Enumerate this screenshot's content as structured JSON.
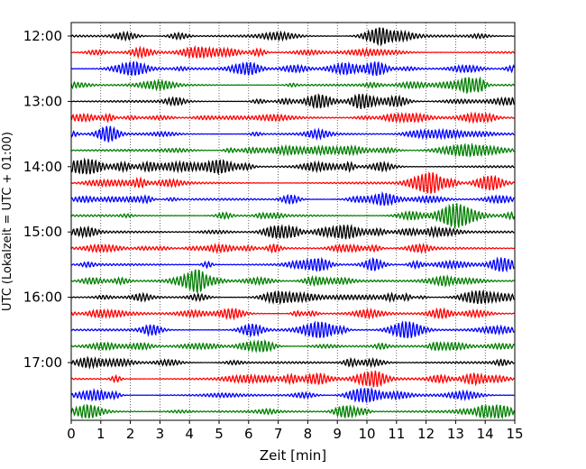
{
  "chart_data": {
    "type": "line",
    "title": "",
    "xlabel": "Zeit  [min]",
    "ylabel": "UTC (Lokalzeit = UTC + 01:00)",
    "xlim": [
      0,
      15
    ],
    "x_ticks": [
      "0",
      "1",
      "2",
      "3",
      "4",
      "5",
      "6",
      "7",
      "8",
      "9",
      "10",
      "11",
      "12",
      "13",
      "14",
      "15"
    ],
    "y_ticks": [
      "12:00",
      "13:00",
      "14:00",
      "15:00",
      "16:00",
      "17:00"
    ],
    "grid": "vertical dotted",
    "trace_count": 24,
    "trace_colors": [
      "#000000",
      "#ff0000",
      "#0000ff",
      "#007f00"
    ]
  }
}
